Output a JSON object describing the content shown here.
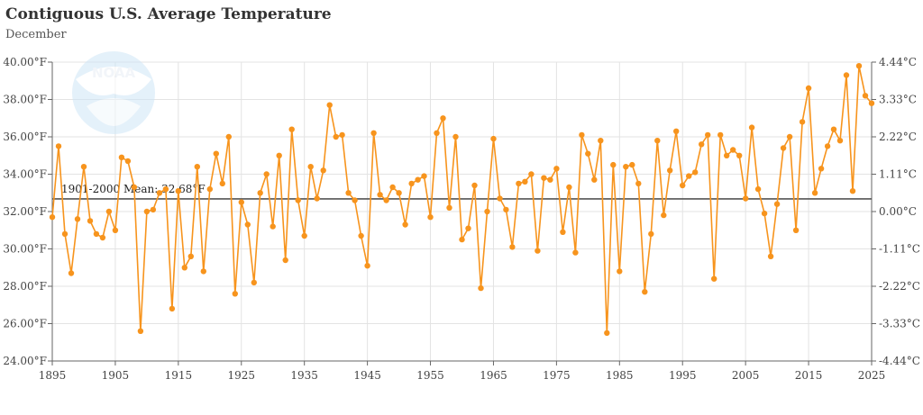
{
  "header": {
    "title": "Contiguous U.S. Average Temperature",
    "subtitle": "December"
  },
  "logo": {
    "text": "NOAA"
  },
  "colors": {
    "series": "#f7941d",
    "mean_line": "#555555",
    "grid": "#e3e3e3"
  },
  "chart_data": {
    "type": "line",
    "title": "Contiguous U.S. Average Temperature",
    "subtitle": "December",
    "xlabel": "",
    "ylabel": "",
    "xlim": [
      1895,
      2025
    ],
    "ylim": [
      24,
      40
    ],
    "grid": true,
    "x_ticks": [
      "1895",
      "1905",
      "1915",
      "1925",
      "1935",
      "1945",
      "1955",
      "1965",
      "1975",
      "1985",
      "1995",
      "2005",
      "2015",
      "2025"
    ],
    "y_ticks_left": [
      "24.00°F",
      "26.00°F",
      "28.00°F",
      "30.00°F",
      "32.00°F",
      "34.00°F",
      "36.00°F",
      "38.00°F",
      "40.00°F"
    ],
    "y_ticks_right": [
      "-4.44°C",
      "-3.33°C",
      "-2.22°C",
      "-1.11°C",
      "0.00°C",
      "1.11°C",
      "2.22°C",
      "3.33°C",
      "4.44°C"
    ],
    "mean": {
      "label": "1901-2000 Mean: 32.68°F",
      "value": 32.68
    },
    "start_year": 1895,
    "values": [
      31.7,
      35.5,
      30.8,
      28.7,
      31.6,
      34.4,
      31.5,
      30.8,
      30.6,
      32.0,
      31.0,
      34.9,
      34.7,
      33.3,
      25.6,
      32.0,
      32.1,
      33.0,
      33.2,
      26.8,
      33.1,
      29.0,
      29.6,
      34.4,
      28.8,
      33.2,
      35.1,
      33.5,
      36.0,
      27.6,
      32.5,
      31.3,
      28.2,
      33.0,
      34.0,
      31.2,
      35.0,
      29.4,
      36.4,
      32.6,
      30.7,
      34.4,
      32.7,
      34.2,
      37.7,
      36.0,
      36.1,
      33.0,
      32.6,
      30.7,
      29.1,
      36.2,
      32.9,
      32.6,
      33.3,
      33.0,
      31.3,
      33.5,
      33.7,
      33.9,
      31.7,
      36.2,
      37.0,
      32.2,
      36.0,
      30.5,
      31.1,
      33.4,
      27.9,
      32.0,
      35.9,
      32.7,
      32.1,
      30.1,
      33.5,
      33.6,
      34.0,
      29.9,
      33.8,
      33.7,
      34.3,
      30.9,
      33.3,
      29.8,
      36.1,
      35.1,
      33.7,
      35.8,
      25.5,
      34.5,
      28.8,
      34.4,
      34.5,
      33.5,
      27.7,
      30.8,
      35.8,
      31.8,
      34.2,
      36.3,
      33.4,
      33.9,
      34.1,
      35.6,
      36.1,
      28.4,
      36.1,
      35.0,
      35.3,
      35.0,
      32.7,
      36.5,
      33.2,
      31.9,
      29.6,
      32.4,
      35.4,
      36.0,
      31.0,
      36.8,
      38.6,
      33.0,
      34.3,
      35.5,
      36.4,
      35.8,
      39.3,
      33.1,
      39.8,
      38.2,
      37.8
    ]
  }
}
